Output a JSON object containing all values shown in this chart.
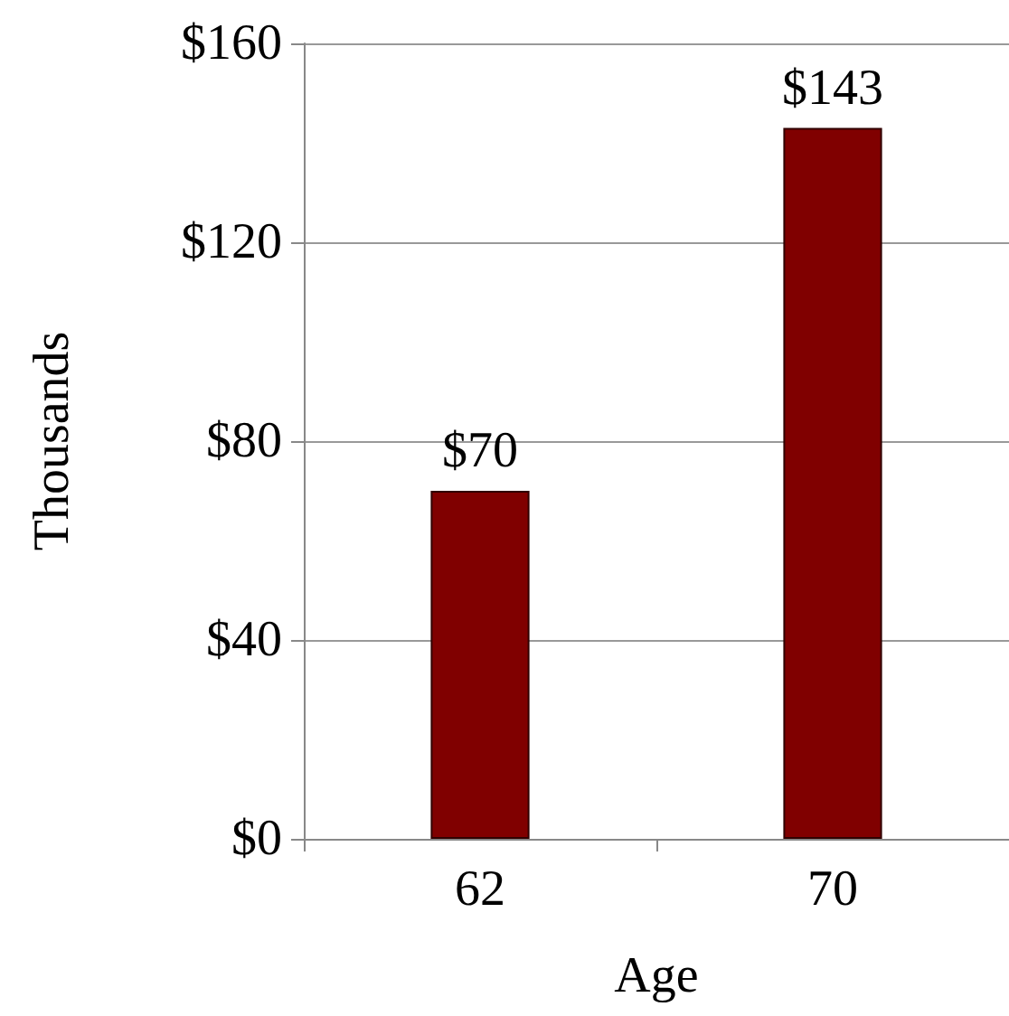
{
  "chart_data": {
    "type": "bar",
    "xlabel": "Age",
    "ylabel": "Thousands",
    "categories": [
      "62",
      "70"
    ],
    "values": [
      70,
      143
    ],
    "color": "#800000",
    "value_labels": [
      "$70",
      "$143"
    ],
    "ylim": [
      0,
      160
    ],
    "yticks": [
      {
        "value": 0,
        "label": "$0"
      },
      {
        "value": 40,
        "label": "$40"
      },
      {
        "value": 80,
        "label": "$80"
      },
      {
        "value": 120,
        "label": "$120"
      },
      {
        "value": 160,
        "label": "$160"
      }
    ],
    "grid": "y"
  }
}
